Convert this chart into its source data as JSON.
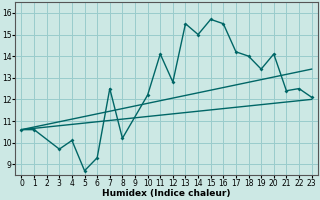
{
  "title": "",
  "xlabel": "Humidex (Indice chaleur)",
  "background_color": "#cce8e4",
  "grid_color": "#99cccc",
  "line_color": "#006666",
  "xlim": [
    -0.5,
    23.5
  ],
  "ylim": [
    8.5,
    16.5
  ],
  "xticks": [
    0,
    1,
    2,
    3,
    4,
    5,
    6,
    7,
    8,
    9,
    10,
    11,
    12,
    13,
    14,
    15,
    16,
    17,
    18,
    19,
    20,
    21,
    22,
    23
  ],
  "yticks": [
    9,
    10,
    11,
    12,
    13,
    14,
    15,
    16
  ],
  "line1_x": [
    0,
    1,
    3,
    4,
    5,
    6,
    7,
    8,
    10,
    11,
    12,
    13,
    14,
    15,
    16,
    17,
    18,
    19,
    20,
    21,
    22,
    23
  ],
  "line1_y": [
    10.6,
    10.6,
    9.7,
    10.1,
    8.7,
    9.3,
    12.5,
    10.2,
    12.2,
    14.1,
    12.8,
    15.5,
    15.0,
    15.7,
    15.5,
    14.2,
    14.0,
    13.4,
    14.1,
    12.4,
    12.5,
    12.1
  ],
  "line2_x": [
    0,
    23
  ],
  "line2_y": [
    10.6,
    12.0
  ],
  "line3_x": [
    0,
    23
  ],
  "line3_y": [
    10.6,
    13.4
  ],
  "line_width": 1.0,
  "marker_size": 2.0,
  "tick_fontsize": 5.5,
  "xlabel_fontsize": 6.5
}
